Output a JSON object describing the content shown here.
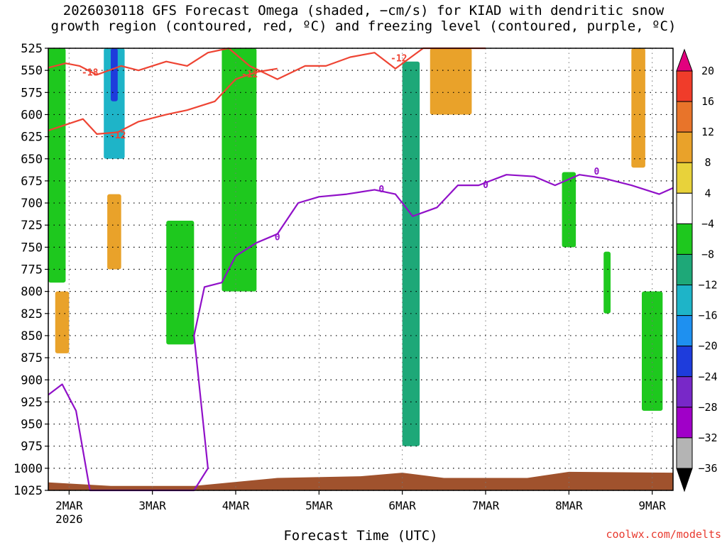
{
  "title_lines": [
    "2026030118 GFS Forecast Omega (shaded, −cm/s) for KIAD with dendritic snow",
    "growth region (contoured, red, ºC) and freezing level (contoured, purple, ºC)"
  ],
  "x_axis_title": "Forecast Time (UTC)",
  "credit": "coolwx.com/modelts",
  "chart_data": {
    "type": "heatmap",
    "title": "2026030118 GFS Forecast Omega (shaded, −cm/s) for KIAD with dendritic snow growth region (contoured, red, ºC) and freezing level (contoured, purple, ºC)",
    "xlabel": "Forecast Time (UTC)",
    "ylabel": "",
    "x_range": [
      "2026-03-01T18:00Z",
      "2026-03-09T06:00Z"
    ],
    "x_ticks": [
      {
        "label": "2MAR",
        "sublabel": "2026",
        "time": "2026-03-02T00:00Z"
      },
      {
        "label": "3MAR",
        "time": "2026-03-03T00:00Z"
      },
      {
        "label": "4MAR",
        "time": "2026-03-04T00:00Z"
      },
      {
        "label": "5MAR",
        "time": "2026-03-05T00:00Z"
      },
      {
        "label": "6MAR",
        "time": "2026-03-06T00:00Z"
      },
      {
        "label": "7MAR",
        "time": "2026-03-07T00:00Z"
      },
      {
        "label": "8MAR",
        "time": "2026-03-08T00:00Z"
      },
      {
        "label": "9MAR",
        "time": "2026-03-09T00:00Z"
      }
    ],
    "y_axis": {
      "unit": "hPa",
      "inverted": true,
      "range": [
        1025,
        525
      ],
      "ticks": [
        525,
        550,
        575,
        600,
        625,
        650,
        675,
        700,
        725,
        750,
        775,
        800,
        825,
        850,
        875,
        900,
        925,
        950,
        975,
        1000,
        1025
      ]
    },
    "grid": true,
    "colorbar": {
      "levels": [
        20,
        16,
        12,
        8,
        4,
        -4,
        -8,
        -12,
        -16,
        -20,
        -24,
        -28,
        -32,
        -36
      ],
      "colors": [
        "#e2007e",
        "#f03c2a",
        "#e8742a",
        "#e9a22a",
        "#e8d23a",
        "#ffffff",
        "#1ec81e",
        "#1ea878",
        "#1eb4c8",
        "#1e90f0",
        "#1e3cdc",
        "#7828c8",
        "#a000c8",
        "#b4b4b4",
        "#000000"
      ]
    },
    "series": [
      {
        "name": "dendritic snow growth region",
        "contour_labels": [
          "-18",
          "-12",
          "-12",
          "-12"
        ],
        "color": "#ee4433"
      },
      {
        "name": "freezing level",
        "contour_labels": [
          "0",
          "0",
          "0",
          "0"
        ],
        "color": "#9010c8"
      }
    ],
    "contours": {
      "snow_upper": [
        [
          "2026-03-01T18:00Z",
          547
        ],
        [
          "2026-03-01T23:00Z",
          542
        ],
        [
          "2026-03-02T03:00Z",
          545
        ],
        [
          "2026-03-02T08:00Z",
          555
        ],
        [
          "2026-03-02T15:00Z",
          545
        ],
        [
          "2026-03-02T20:00Z",
          550
        ],
        [
          "2026-03-03T04:00Z",
          540
        ],
        [
          "2026-03-03T10:00Z",
          545
        ],
        [
          "2026-03-03T16:00Z",
          530
        ],
        [
          "2026-03-03T22:00Z",
          525
        ],
        [
          "2026-03-04T04:00Z",
          545
        ],
        [
          "2026-03-04T12:00Z",
          560
        ],
        [
          "2026-03-04T20:00Z",
          545
        ],
        [
          "2026-03-05T02:00Z",
          545
        ],
        [
          "2026-03-05T09:00Z",
          535
        ],
        [
          "2026-03-05T16:00Z",
          530
        ],
        [
          "2026-03-05T22:00Z",
          548
        ],
        [
          "2026-03-06T06:00Z",
          525
        ],
        [
          "2026-03-07T00:00Z",
          525
        ]
      ],
      "snow_lower": [
        [
          "2026-03-01T18:00Z",
          618
        ],
        [
          "2026-03-02T04:00Z",
          605
        ],
        [
          "2026-03-02T08:00Z",
          622
        ],
        [
          "2026-03-02T14:00Z",
          620
        ],
        [
          "2026-03-02T20:00Z",
          608
        ],
        [
          "2026-03-03T04:00Z",
          600
        ],
        [
          "2026-03-03T10:00Z",
          595
        ],
        [
          "2026-03-03T18:00Z",
          585
        ],
        [
          "2026-03-04T00:00Z",
          560
        ],
        [
          "2026-03-04T06:00Z",
          552
        ],
        [
          "2026-03-04T12:00Z",
          548
        ]
      ],
      "freezing_level": [
        [
          "2026-03-01T18:00Z",
          917
        ],
        [
          "2026-03-01T22:00Z",
          905
        ],
        [
          "2026-03-02T02:00Z",
          935
        ],
        [
          "2026-03-02T06:00Z",
          1025
        ],
        [
          "2026-03-03T12:00Z",
          1025
        ],
        [
          "2026-03-03T16:00Z",
          1000
        ],
        [
          "2026-03-03T12:00Z",
          850
        ],
        [
          "2026-03-03T15:00Z",
          795
        ],
        [
          "2026-03-03T20:00Z",
          790
        ],
        [
          "2026-03-04T00:00Z",
          760
        ],
        [
          "2026-03-04T06:00Z",
          745
        ],
        [
          "2026-03-04T12:00Z",
          735
        ],
        [
          "2026-03-04T18:00Z",
          700
        ],
        [
          "2026-03-05T00:00Z",
          693
        ],
        [
          "2026-03-05T08:00Z",
          690
        ],
        [
          "2026-03-05T16:00Z",
          685
        ],
        [
          "2026-03-05T22:00Z",
          690
        ],
        [
          "2026-03-06T03:00Z",
          715
        ],
        [
          "2026-03-06T10:00Z",
          705
        ],
        [
          "2026-03-06T16:00Z",
          680
        ],
        [
          "2026-03-06T22:00Z",
          680
        ],
        [
          "2026-03-07T06:00Z",
          668
        ],
        [
          "2026-03-07T14:00Z",
          670
        ],
        [
          "2026-03-07T20:00Z",
          680
        ],
        [
          "2026-03-08T03:00Z",
          668
        ],
        [
          "2026-03-08T10:00Z",
          672
        ],
        [
          "2026-03-08T18:00Z",
          680
        ],
        [
          "2026-03-09T02:00Z",
          690
        ],
        [
          "2026-03-09T06:00Z",
          683
        ]
      ]
    },
    "shaded_regions": [
      {
        "t0": "2026-03-01T18:00Z",
        "t1": "2026-03-01T23:00Z",
        "p0": 525,
        "p1": 790,
        "class": -8
      },
      {
        "t0": "2026-03-02T10:00Z",
        "t1": "2026-03-02T16:00Z",
        "p0": 525,
        "p1": 650,
        "class": -16
      },
      {
        "t0": "2026-03-02T12:00Z",
        "t1": "2026-03-02T14:00Z",
        "p0": 525,
        "p1": 585,
        "class": -24
      },
      {
        "t0": "2026-03-02T11:00Z",
        "t1": "2026-03-02T15:00Z",
        "p0": 690,
        "p1": 775,
        "class": 8
      },
      {
        "t0": "2026-03-01T20:00Z",
        "t1": "2026-03-02T00:00Z",
        "p0": 800,
        "p1": 870,
        "class": 8
      },
      {
        "t0": "2026-03-03T04:00Z",
        "t1": "2026-03-03T12:00Z",
        "p0": 720,
        "p1": 860,
        "class": -8
      },
      {
        "t0": "2026-03-03T20:00Z",
        "t1": "2026-03-04T06:00Z",
        "p0": 525,
        "p1": 800,
        "class": -8
      },
      {
        "t0": "2026-03-06T00:00Z",
        "t1": "2026-03-06T05:00Z",
        "p0": 540,
        "p1": 975,
        "class": -12
      },
      {
        "t0": "2026-03-07T22:00Z",
        "t1": "2026-03-08T02:00Z",
        "p0": 665,
        "p1": 750,
        "class": -8
      },
      {
        "t0": "2026-03-08T10:00Z",
        "t1": "2026-03-08T12:00Z",
        "p0": 755,
        "p1": 825,
        "class": -8
      },
      {
        "t0": "2026-03-08T21:00Z",
        "t1": "2026-03-09T03:00Z",
        "p0": 800,
        "p1": 935,
        "class": -8
      },
      {
        "t0": "2026-03-08T18:00Z",
        "t1": "2026-03-08T22:00Z",
        "p0": 525,
        "p1": 660,
        "class": 8
      },
      {
        "t0": "2026-03-06T08:00Z",
        "t1": "2026-03-06T20:00Z",
        "p0": 525,
        "p1": 600,
        "class": 8
      }
    ],
    "ground": {
      "color": "#a0522d"
    }
  }
}
